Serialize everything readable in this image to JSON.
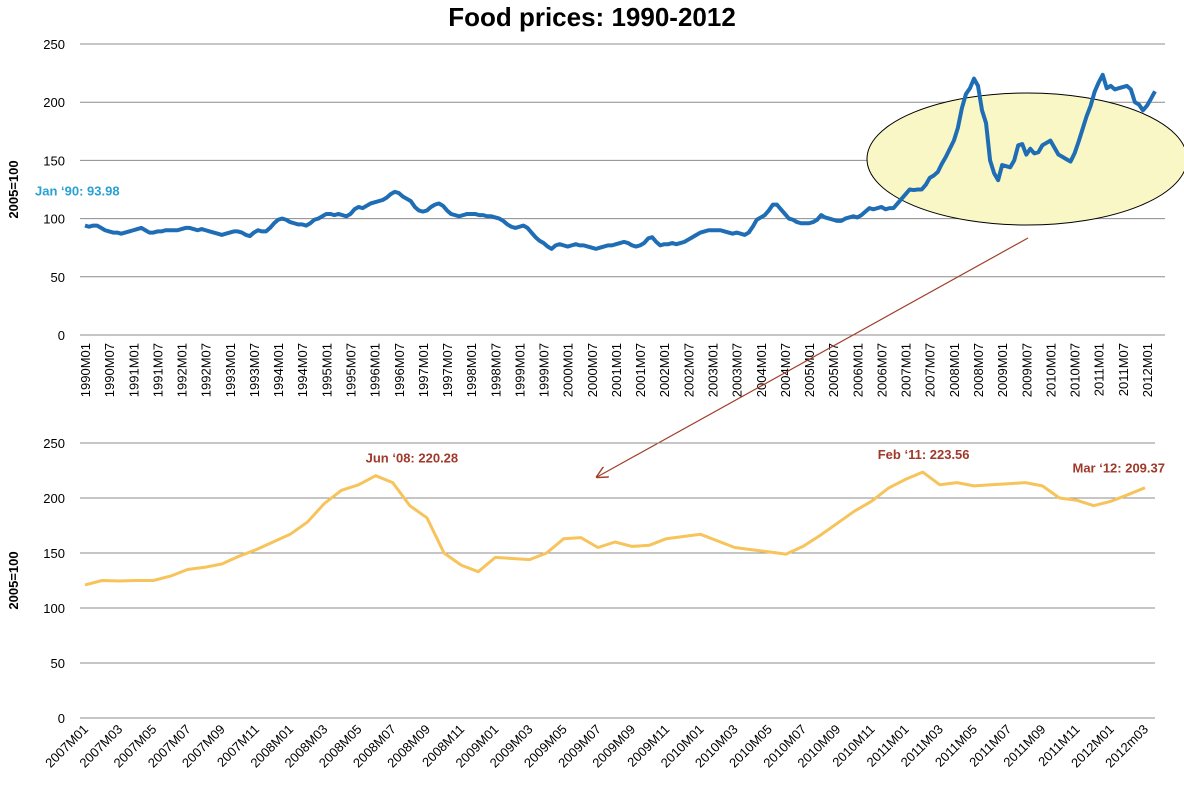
{
  "chart_data": [
    {
      "type": "line",
      "title": "Food prices: 1990-2012",
      "y_label": "2005=100",
      "ylim": [
        0,
        250
      ],
      "yticks": [
        0,
        50,
        100,
        150,
        200,
        250
      ],
      "grid": true,
      "color": "#1f6db5",
      "annotations": [
        "Jan ‘90: 93.98"
      ],
      "categories": [
        "1990M01",
        null,
        null,
        null,
        null,
        null,
        "1990M07",
        null,
        null,
        null,
        null,
        null,
        "1991M01",
        null,
        null,
        null,
        null,
        null,
        "1991M07",
        null,
        null,
        null,
        null,
        null,
        "1992M01",
        null,
        null,
        null,
        null,
        null,
        "1992M07",
        null,
        null,
        null,
        null,
        null,
        "1993M01",
        null,
        null,
        null,
        null,
        null,
        "1993M07",
        null,
        null,
        null,
        null,
        null,
        "1994M01",
        null,
        null,
        null,
        null,
        null,
        "1994M07",
        null,
        null,
        null,
        null,
        null,
        "1995M01",
        null,
        null,
        null,
        null,
        null,
        "1995M07",
        null,
        null,
        null,
        null,
        null,
        "1996M01",
        null,
        null,
        null,
        null,
        null,
        "1996M07",
        null,
        null,
        null,
        null,
        null,
        "1997M01",
        null,
        null,
        null,
        null,
        null,
        "1997M07",
        null,
        null,
        null,
        null,
        null,
        "1998M01",
        null,
        null,
        null,
        null,
        null,
        "1998M07",
        null,
        null,
        null,
        null,
        null,
        "1999M01",
        null,
        null,
        null,
        null,
        null,
        "1999M07",
        null,
        null,
        null,
        null,
        null,
        "2000M01",
        null,
        null,
        null,
        null,
        null,
        "2000M07",
        null,
        null,
        null,
        null,
        null,
        "2001M01",
        null,
        null,
        null,
        null,
        null,
        "2001M07",
        null,
        null,
        null,
        null,
        null,
        "2002M01",
        null,
        null,
        null,
        null,
        null,
        "2002M07",
        null,
        null,
        null,
        null,
        null,
        "2003M01",
        null,
        null,
        null,
        null,
        null,
        "2003M07",
        null,
        null,
        null,
        null,
        null,
        "2004M01",
        null,
        null,
        null,
        null,
        null,
        "2004M07",
        null,
        null,
        null,
        null,
        null,
        "2005M01",
        null,
        null,
        null,
        null,
        null,
        "2005M07",
        null,
        null,
        null,
        null,
        null,
        "2006M01",
        null,
        null,
        null,
        null,
        null,
        "2006M07",
        null,
        null,
        null,
        null,
        null,
        "2007M01",
        null,
        null,
        null,
        null,
        null,
        "2007M07",
        null,
        null,
        null,
        null,
        null,
        "2008M01",
        null,
        null,
        null,
        null,
        null,
        "2008M07",
        null,
        null,
        null,
        null,
        null,
        "2009M01",
        null,
        null,
        null,
        null,
        null,
        "2009M07",
        null,
        null,
        null,
        null,
        null,
        "2010M01",
        null,
        null,
        null,
        null,
        null,
        "2010M07",
        null,
        null,
        null,
        null,
        null,
        "2011M01",
        null,
        null,
        null,
        null,
        null,
        "2011M07",
        null,
        null,
        null,
        null,
        null,
        "2012M01",
        null,
        null
      ],
      "values": [
        93.98,
        93,
        94,
        94,
        92,
        90,
        89,
        88,
        88,
        87,
        88,
        89,
        90,
        91,
        92,
        90,
        88,
        88,
        89,
        89,
        90,
        90,
        90,
        90,
        91,
        92,
        92,
        91,
        90,
        91,
        90,
        89,
        88,
        87,
        86,
        87,
        88,
        89,
        89,
        88,
        86,
        85,
        88,
        90,
        89,
        89,
        92,
        96,
        99,
        100,
        99,
        97,
        96,
        95,
        95,
        94,
        96,
        99,
        100,
        102,
        104,
        104,
        103,
        104,
        103,
        102,
        104,
        108,
        110,
        109,
        111,
        113,
        114,
        115,
        116,
        118,
        121,
        123,
        122,
        119,
        117,
        115,
        110,
        107,
        106,
        107,
        110,
        112,
        113,
        111,
        107,
        104,
        103,
        102,
        103,
        104,
        104,
        104,
        103,
        103,
        102,
        102,
        101,
        100,
        98,
        95,
        93,
        92,
        93,
        94,
        92,
        88,
        84,
        81,
        79,
        76,
        74,
        77,
        78,
        77,
        76,
        77,
        78,
        77,
        77,
        76,
        75,
        74,
        75,
        76,
        77,
        77,
        78,
        79,
        80,
        79,
        77,
        76,
        77,
        79,
        83,
        84,
        80,
        77,
        78,
        78,
        79,
        78,
        79,
        80,
        82,
        84,
        86,
        88,
        89,
        90,
        90,
        90,
        90,
        89,
        88,
        87,
        88,
        87,
        86,
        88,
        93,
        99,
        101,
        103,
        107,
        112,
        112,
        108,
        104,
        100,
        99,
        97,
        96,
        96,
        96,
        97,
        99,
        103,
        101,
        100,
        99,
        98,
        98,
        100,
        101,
        102,
        101,
        103,
        106,
        109,
        108,
        109,
        110,
        108,
        109,
        109,
        113,
        117,
        121,
        125,
        124.5,
        125,
        125,
        129,
        135,
        137,
        140,
        147,
        153,
        160,
        167,
        178,
        195,
        207,
        212,
        220.28,
        214,
        193,
        182,
        150,
        139,
        133,
        146,
        145,
        144,
        150,
        163,
        164,
        155,
        160,
        156,
        157,
        163,
        165,
        167,
        161,
        155,
        153,
        151,
        149,
        156,
        166,
        177,
        188,
        197,
        209,
        217,
        223.56,
        212,
        214,
        211,
        212,
        213,
        214,
        211,
        200,
        198,
        193,
        197,
        203,
        209.37
      ]
    },
    {
      "type": "line",
      "y_label": "2005=100",
      "ylim": [
        0,
        250
      ],
      "yticks": [
        0,
        50,
        100,
        150,
        200,
        250
      ],
      "grid": true,
      "color": "#f7c35b",
      "annotations": [
        "Jun ‘08: 220.28",
        "Feb ‘11: 223.56",
        "Mar ‘12: 209.37"
      ],
      "categories": [
        "2007M01",
        null,
        "2007M03",
        null,
        "2007M05",
        null,
        "2007M07",
        null,
        "2007M09",
        null,
        "2007M11",
        null,
        "2008M01",
        null,
        "2008M03",
        null,
        "2008M05",
        null,
        "2008M07",
        null,
        "2008M09",
        null,
        "2008M11",
        null,
        "2009M01",
        null,
        "2009M03",
        null,
        "2009M05",
        null,
        "2009M07",
        null,
        "2009M09",
        null,
        "2009M11",
        null,
        "2010M01",
        null,
        "2010M03",
        null,
        "2010M05",
        null,
        "2010M07",
        null,
        "2010M09",
        null,
        "2010M11",
        null,
        "2011M01",
        null,
        "2011M03",
        null,
        "2011M05",
        null,
        "2011M07",
        null,
        "2011M09",
        null,
        "2011M11",
        null,
        "2012M01",
        null,
        "2012m03"
      ],
      "values": [
        121,
        125,
        124.5,
        125,
        125,
        129,
        135,
        137,
        140,
        147,
        153,
        160,
        167,
        178,
        195,
        207,
        212,
        220.28,
        214,
        193,
        182,
        150,
        139,
        133,
        146,
        145,
        144,
        150,
        163,
        164,
        155,
        160,
        156,
        157,
        163,
        165,
        167,
        161,
        155,
        153,
        151,
        149,
        156,
        166,
        177,
        188,
        197,
        209,
        217,
        223.56,
        212,
        214,
        211,
        212,
        213,
        214,
        211,
        200,
        198,
        193,
        197,
        203,
        209.37
      ]
    }
  ]
}
